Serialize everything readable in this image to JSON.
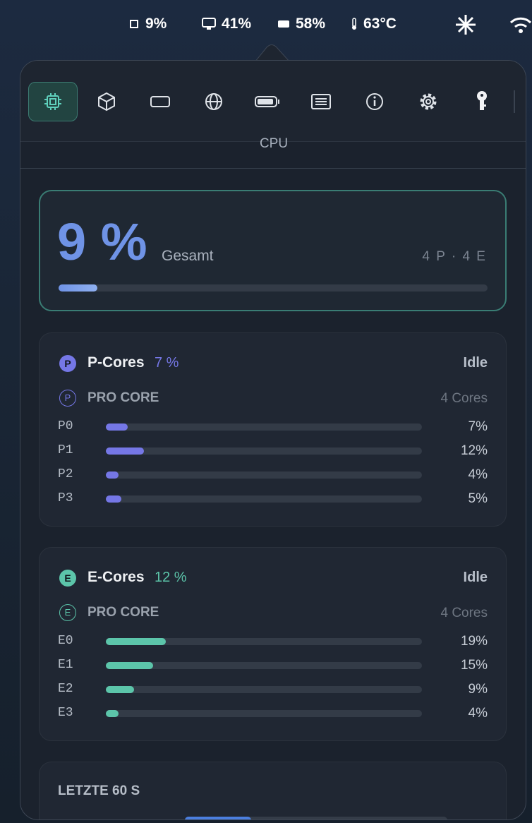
{
  "menu_bar": {
    "items": [
      "9%",
      "41%",
      "58%",
      "63°C"
    ]
  },
  "tabs": {
    "active_title": "CPU"
  },
  "total": {
    "value": 9,
    "label": "9 %",
    "caption": "Gesamt",
    "cores": "4 P · 4 E",
    "color": "#6f93e6"
  },
  "groups": [
    {
      "badge": "P",
      "name": "P-Cores",
      "usage": "7 %",
      "state": "Idle",
      "sub_badge": "P",
      "sub_title": "PRO CORE",
      "count": "4 Cores",
      "color": "#7577e6",
      "cores": [
        {
          "name": "P0",
          "value": 7,
          "label": "7%"
        },
        {
          "name": "P1",
          "value": 12,
          "label": "12%"
        },
        {
          "name": "P2",
          "value": 4,
          "label": "4%"
        },
        {
          "name": "P3",
          "value": 5,
          "label": "5%"
        }
      ]
    },
    {
      "badge": "E",
      "name": "E-Cores",
      "usage": "12 %",
      "state": "Idle",
      "sub_badge": "E",
      "sub_title": "PRO CORE",
      "count": "4 Cores",
      "color": "#5cc5aa",
      "cores": [
        {
          "name": "E0",
          "value": 19,
          "label": "19%"
        },
        {
          "name": "E1",
          "value": 15,
          "label": "15%"
        },
        {
          "name": "E2",
          "value": 9,
          "label": "9%"
        },
        {
          "name": "E3",
          "value": 4,
          "label": "4%"
        }
      ]
    }
  ],
  "history": {
    "title": "LETZTE 60 S"
  }
}
